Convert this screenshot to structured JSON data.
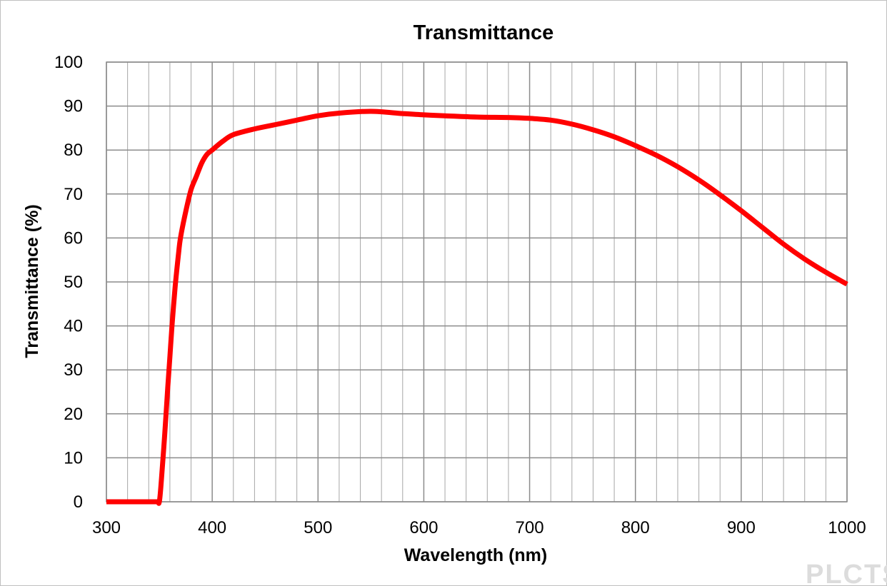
{
  "watermark": "PLCTS",
  "chart_data": {
    "type": "line",
    "title": "Transmittance",
    "xlabel": "Wavelength (nm)",
    "ylabel": "Transmittance (%)",
    "xlim": [
      300,
      1000
    ],
    "ylim": [
      0,
      100
    ],
    "x_ticks": [
      300,
      400,
      500,
      600,
      700,
      800,
      900,
      1000
    ],
    "y_ticks": [
      0,
      10,
      20,
      30,
      40,
      50,
      60,
      70,
      80,
      90,
      100
    ],
    "x_minor_step": 20,
    "y_step": 10,
    "grid": true,
    "legend": "none",
    "series": [
      {
        "color": "#ff0000",
        "x": [
          300,
          320,
          340,
          348,
          350,
          352,
          355,
          358,
          360,
          362,
          365,
          368,
          370,
          375,
          380,
          385,
          390,
          395,
          400,
          410,
          420,
          440,
          460,
          480,
          500,
          520,
          550,
          580,
          600,
          620,
          650,
          680,
          700,
          720,
          740,
          760,
          780,
          800,
          820,
          840,
          860,
          880,
          900,
          920,
          940,
          960,
          980,
          1000
        ],
        "y": [
          0,
          0,
          0,
          0,
          0,
          5,
          15,
          26,
          33,
          40,
          49,
          56,
          60,
          66,
          71,
          74,
          77,
          79,
          80,
          82,
          83.5,
          84.8,
          85.8,
          86.8,
          87.8,
          88.4,
          88.8,
          88.3,
          88.0,
          87.8,
          87.5,
          87.4,
          87.2,
          86.8,
          85.9,
          84.6,
          83,
          81,
          78.8,
          76.2,
          73.2,
          69.8,
          66.2,
          62.4,
          58.6,
          55.2,
          52.2,
          49.5
        ]
      }
    ]
  }
}
